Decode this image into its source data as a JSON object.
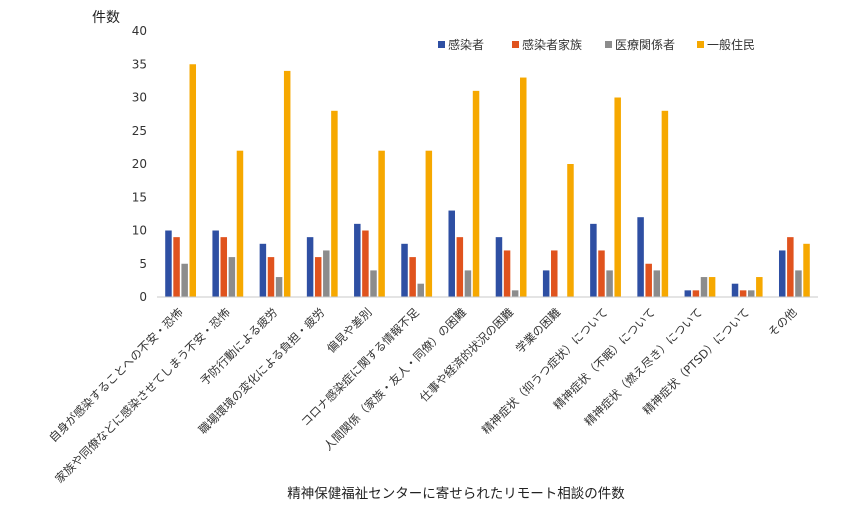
{
  "chart_data": {
    "type": "bar",
    "title": "",
    "xlabel": "精神保健福祉センターに寄せられたリモート相談の件数",
    "ylabel": "件数",
    "ylim": [
      0,
      40
    ],
    "yticks": [
      0,
      5,
      10,
      15,
      20,
      25,
      30,
      35,
      40
    ],
    "grid": false,
    "legend_position": "top-right",
    "categories": [
      "自身が感染することへの不安・恐怖",
      "家族や同僚などに感染させてしまう不安・恐怖",
      "予防行動による疲労",
      "職場環境の変化による負担・疲労",
      "偏見や差別",
      "コロナ感染症に関する情報不足",
      "人間関係（家族・友人・同僚）の困難",
      "仕事や経済的状況の困難",
      "学業の困難",
      "精神症状（抑うつ症状）について",
      "精神症状（不眠）について",
      "精神症状（燃え尽き）について",
      "精神症状（PTSD）について",
      "その他"
    ],
    "series": [
      {
        "name": "感染者",
        "color": "#2E4FA3",
        "values": [
          10,
          10,
          8,
          9,
          11,
          8,
          13,
          9,
          4,
          11,
          12,
          1,
          2,
          7
        ]
      },
      {
        "name": "感染者家族",
        "color": "#E0531E",
        "values": [
          9,
          9,
          6,
          6,
          10,
          6,
          9,
          7,
          7,
          7,
          5,
          1,
          1,
          9
        ]
      },
      {
        "name": "医療関係者",
        "color": "#8C8C8C",
        "values": [
          5,
          6,
          3,
          7,
          4,
          2,
          4,
          1,
          0,
          4,
          4,
          3,
          1,
          4
        ]
      },
      {
        "name": "一般住民",
        "color": "#F6A800",
        "values": [
          35,
          22,
          34,
          28,
          22,
          22,
          31,
          33,
          20,
          30,
          28,
          3,
          3,
          8
        ]
      }
    ]
  }
}
